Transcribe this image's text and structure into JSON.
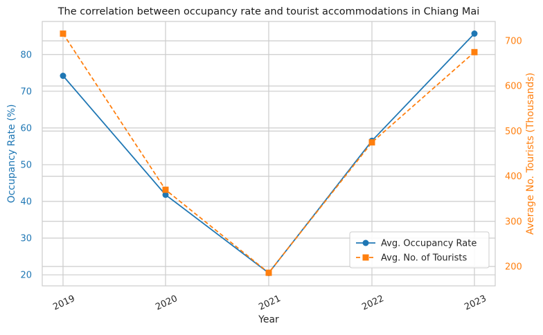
{
  "chart_data": {
    "type": "line",
    "title": "The correlation between occupancy rate and tourist accommodations in Chiang Mai",
    "xlabel": "Year",
    "ylabel_left": "Occupancy Rate (%)",
    "ylabel_right": "Average No. Tourists (Thousands)",
    "categories": [
      "2019",
      "2020",
      "2021",
      "2022",
      "2023"
    ],
    "ylim_left": [
      17,
      89
    ],
    "ylim_right": [
      157,
      743
    ],
    "yticks_left": [
      20,
      30,
      40,
      50,
      60,
      70,
      80
    ],
    "yticks_right": [
      200,
      300,
      400,
      500,
      600,
      700
    ],
    "series": [
      {
        "name": "Avg. Occupancy Rate",
        "axis": "left",
        "values": [
          74.2,
          41.8,
          20.5,
          56.5,
          85.7
        ],
        "color": "#1f77b4",
        "marker": "circle",
        "line_style": "solid"
      },
      {
        "name": "Avg. No. of Tourists",
        "axis": "right",
        "values": [
          716,
          370,
          186,
          475,
          675
        ],
        "color": "#ff7f0e",
        "marker": "square",
        "line_style": "dashed"
      }
    ],
    "grid": true,
    "legend_position": "lower-right",
    "colors": {
      "left_axis": "#1f77b4",
      "right_axis": "#ff7f0e",
      "grid": "#cccccc",
      "frame": "#cccccc",
      "text": "#262626"
    }
  }
}
